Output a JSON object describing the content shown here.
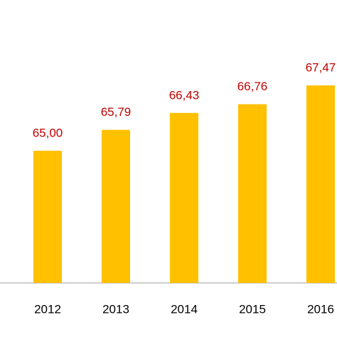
{
  "chart_data": {
    "type": "bar",
    "categories": [
      "2012",
      "2013",
      "2014",
      "2015",
      "2016"
    ],
    "values": [
      65.0,
      65.79,
      66.43,
      66.76,
      67.47
    ],
    "value_labels": [
      "65,00",
      "65,79",
      "66,43",
      "66,76",
      "67,47"
    ],
    "color": "#ffc000",
    "label_color": "#c00000",
    "ylim": [
      60,
      70.7
    ]
  }
}
